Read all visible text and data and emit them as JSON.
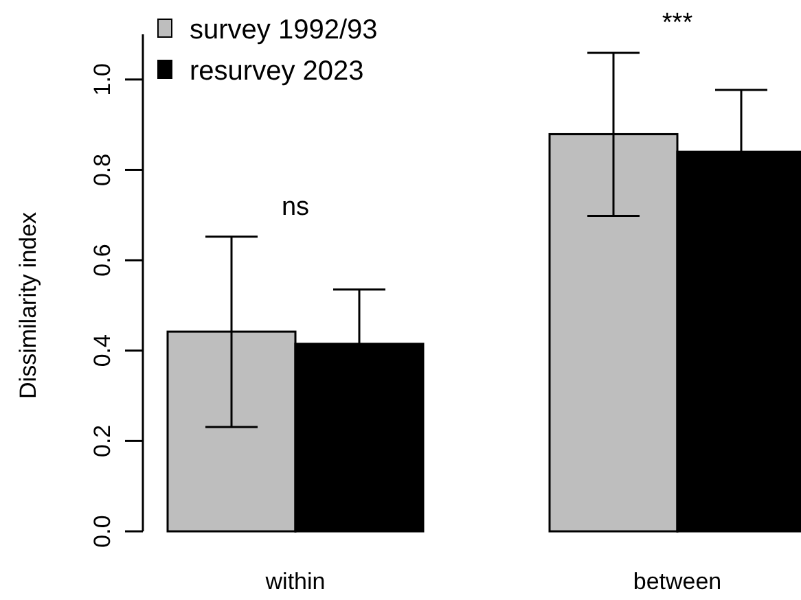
{
  "chart_data": {
    "type": "bar",
    "ylabel": "Dissimilarity index",
    "categories": [
      "within",
      "between"
    ],
    "series": [
      {
        "name": "survey 1992/93",
        "color": "#bebebe",
        "values": [
          0.442,
          0.879
        ],
        "errors": [
          [
            0.231,
            0.652
          ],
          [
            0.698,
            1.059
          ]
        ]
      },
      {
        "name": "resurvey 2023",
        "color": "#000000",
        "values": [
          0.415,
          0.84
        ],
        "errors": [
          0.12,
          0.137
        ]
      }
    ],
    "ylim": [
      0,
      1.1
    ],
    "yticks": [
      {
        "value": 0,
        "label": "0.0"
      },
      0.2,
      0.4,
      0.6,
      0.8,
      {
        "value": 1,
        "label": "1.0"
      }
    ],
    "annotations": [
      "ns",
      "***"
    ],
    "legend": "top left",
    "grid": false
  }
}
